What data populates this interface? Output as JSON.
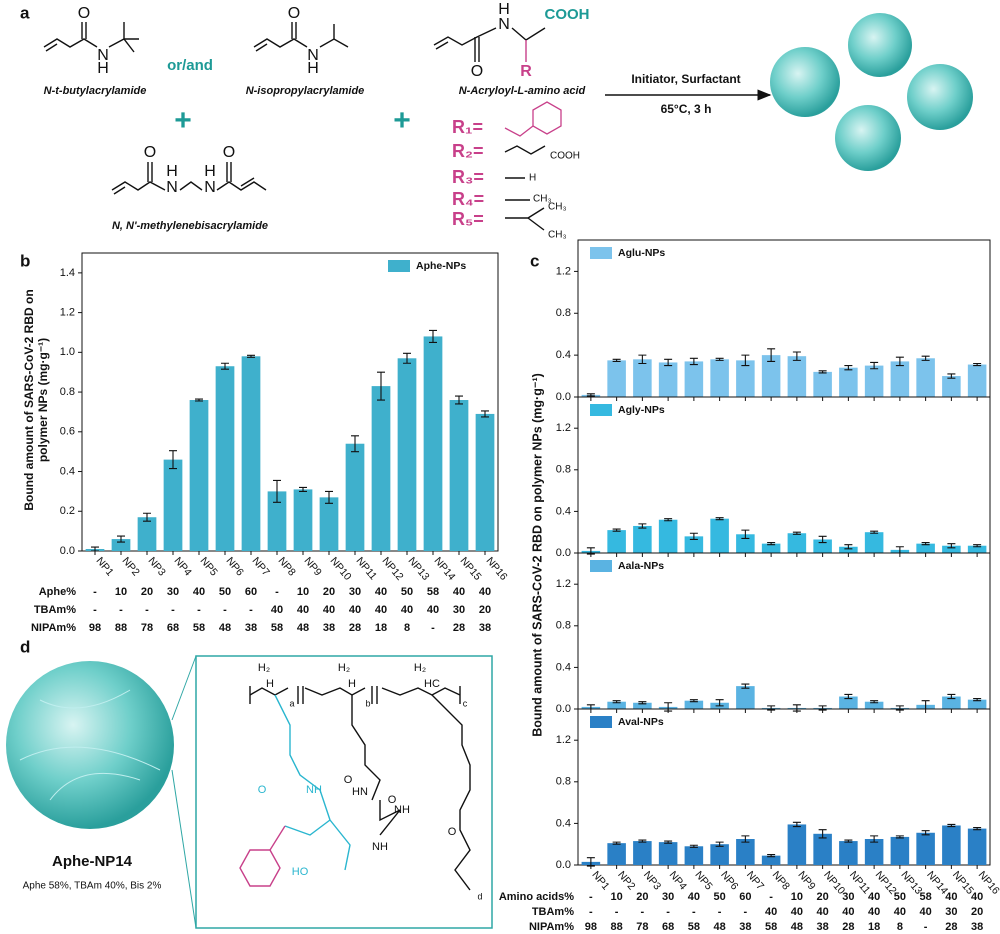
{
  "panel_labels": [
    "a",
    "b",
    "c",
    "d"
  ],
  "scheme": {
    "monomers": [
      {
        "name": "N-t-butylacrylamide",
        "atoms": [
          "O",
          "N",
          "H"
        ]
      },
      {
        "name": "N-isopropylacrylamide",
        "atoms": [
          "O",
          "N",
          "H"
        ]
      },
      {
        "name": "N-Acryloyl-L-amino acid",
        "atoms": [
          "H",
          "N",
          "O",
          "COOH",
          "R"
        ]
      },
      {
        "name": "N, N'-methylenebisacrylamide",
        "atoms": [
          "O",
          "O",
          "H",
          "N",
          "N",
          "H"
        ]
      }
    ],
    "connector": "or/and",
    "plus": [
      "+",
      "+"
    ],
    "conditions": [
      "Initiator, Surfactant",
      "65°C, 3 h"
    ],
    "r_groups": [
      {
        "label": "R₁=",
        "atoms": []
      },
      {
        "label": "R₂=",
        "atoms": [
          "COOH"
        ]
      },
      {
        "label": "R₃=",
        "atoms": [
          "H"
        ]
      },
      {
        "label": "R₄=",
        "atoms": [
          "CH₃"
        ]
      },
      {
        "label": "R₅=",
        "atoms": [
          "CH₃",
          "CH₃"
        ]
      }
    ]
  },
  "panel_c": {
    "ylabel": "Bound amount of SARS-CoV-2 RBD on polymer NPs (mg·g⁻¹)"
  },
  "chart_data": [
    {
      "type": "bar",
      "legend": "top-right",
      "ylabel": [
        "Bound amount of SARS-CoV-2 RBD on",
        "polymer NPs (mg·g⁻¹)"
      ],
      "categories": [
        "NP1",
        "NP2",
        "NP3",
        "NP4",
        "NP5",
        "NP6",
        "NP7",
        "NP8",
        "NP9",
        "NP10",
        "NP11",
        "NP12",
        "NP13",
        "NP14",
        "NP15",
        "NP16"
      ],
      "series": [
        {
          "name": "Aphe-NPs",
          "color": "#3fb0cc",
          "values": [
            0.01,
            0.06,
            0.17,
            0.46,
            0.76,
            0.93,
            0.98,
            0.3,
            0.31,
            0.27,
            0.54,
            0.83,
            0.97,
            1.08,
            0.76,
            0.69
          ],
          "errors": [
            0.01,
            0.015,
            0.02,
            0.045,
            0.005,
            0.015,
            0.005,
            0.055,
            0.01,
            0.03,
            0.04,
            0.07,
            0.025,
            0.03,
            0.02,
            0.015
          ]
        }
      ],
      "ylim": [
        0,
        1.5
      ],
      "yticks": [
        {
          "value": 0,
          "label": "0.0"
        },
        0.2,
        0.4,
        0.6,
        0.8,
        {
          "value": 1,
          "label": "1.0"
        },
        1.2,
        1.4
      ]
    },
    {
      "type": "bar",
      "legend": "top-left",
      "series": [
        {
          "name": "Aglu-NPs",
          "color": "#7cc3ec",
          "values": [
            0.02,
            0.35,
            0.36,
            0.33,
            0.34,
            0.36,
            0.35,
            0.4,
            0.39,
            0.24,
            0.28,
            0.3,
            0.34,
            0.37,
            0.2,
            0.31
          ],
          "errors": [
            0.01,
            0.01,
            0.04,
            0.03,
            0.03,
            0.01,
            0.05,
            0.06,
            0.04,
            0.01,
            0.02,
            0.03,
            0.04,
            0.02,
            0.02,
            0.01
          ]
        }
      ],
      "ylim": [
        0,
        1.5
      ],
      "yticks": [
        {
          "value": 0,
          "label": "0.0"
        },
        0.4,
        0.8,
        1.2
      ]
    },
    {
      "type": "bar",
      "legend": "top-left",
      "series": [
        {
          "name": "Agly-NPs",
          "color": "#35b9e0",
          "values": [
            0.02,
            0.22,
            0.26,
            0.32,
            0.16,
            0.33,
            0.18,
            0.09,
            0.19,
            0.13,
            0.06,
            0.2,
            0.03,
            0.09,
            0.07,
            0.07
          ],
          "errors": [
            0.03,
            0.01,
            0.02,
            0.01,
            0.03,
            0.01,
            0.04,
            0.01,
            0.01,
            0.03,
            0.02,
            0.01,
            0.03,
            0.01,
            0.02,
            0.01
          ]
        }
      ],
      "ylim": [
        0,
        1.5
      ],
      "yticks": [
        {
          "value": 0,
          "label": "0.0"
        },
        0.4,
        0.8,
        1.2
      ]
    },
    {
      "type": "bar",
      "legend": "top-left",
      "series": [
        {
          "name": "Aala-NPs",
          "color": "#5ab3e2",
          "values": [
            0.02,
            0.07,
            0.06,
            0.02,
            0.08,
            0.06,
            0.22,
            0.01,
            0.01,
            0.01,
            0.12,
            0.07,
            0.01,
            0.04,
            0.12,
            0.09
          ],
          "errors": [
            0.02,
            0.01,
            0.01,
            0.04,
            0.01,
            0.03,
            0.02,
            0.02,
            0.03,
            0.02,
            0.02,
            0.01,
            0.02,
            0.04,
            0.02,
            0.01
          ]
        }
      ],
      "ylim": [
        0,
        1.5
      ],
      "yticks": [
        {
          "value": 0,
          "label": "0.0"
        },
        0.4,
        0.8,
        1.2
      ]
    },
    {
      "type": "bar",
      "legend": "top-left",
      "categories": [
        "NP1",
        "NP2",
        "NP3",
        "NP4",
        "NP5",
        "NP6",
        "NP7",
        "NP8",
        "NP9",
        "NP10",
        "NP11",
        "NP12",
        "NP13",
        "NP14",
        "NP15",
        "NP16"
      ],
      "series": [
        {
          "name": "Aval-NPs",
          "color": "#2a80c6",
          "values": [
            0.03,
            0.21,
            0.23,
            0.22,
            0.18,
            0.2,
            0.25,
            0.09,
            0.39,
            0.3,
            0.23,
            0.25,
            0.27,
            0.31,
            0.38,
            0.35
          ],
          "errors": [
            0.04,
            0.01,
            0.01,
            0.01,
            0.01,
            0.02,
            0.03,
            0.01,
            0.02,
            0.04,
            0.01,
            0.03,
            0.01,
            0.02,
            0.01,
            0.01
          ]
        }
      ],
      "ylim": [
        0,
        1.5
      ],
      "yticks": [
        {
          "value": 0,
          "label": "0.0"
        },
        0.4,
        0.8,
        1.2
      ]
    }
  ],
  "table_b": {
    "rows": [
      {
        "label": "Aphe%",
        "cells": [
          "-",
          "10",
          "20",
          "30",
          "40",
          "50",
          "60",
          "-",
          "10",
          "20",
          "30",
          "40",
          "50",
          "58",
          "40",
          "40"
        ]
      },
      {
        "label": "TBAm%",
        "cells": [
          "-",
          "-",
          "-",
          "-",
          "-",
          "-",
          "-",
          "40",
          "40",
          "40",
          "40",
          "40",
          "40",
          "40",
          "30",
          "20"
        ]
      },
      {
        "label": "NIPAm%",
        "cells": [
          "98",
          "88",
          "78",
          "68",
          "58",
          "48",
          "38",
          "58",
          "48",
          "38",
          "28",
          "18",
          "8",
          "-",
          "28",
          "38"
        ]
      }
    ]
  },
  "table_c": {
    "rows": [
      {
        "label": "Amino acids%",
        "cells": [
          "-",
          "10",
          "20",
          "30",
          "40",
          "50",
          "60",
          "-",
          "10",
          "20",
          "30",
          "40",
          "50",
          "58",
          "40",
          "40"
        ]
      },
      {
        "label": "TBAm%",
        "cells": [
          "-",
          "-",
          "-",
          "-",
          "-",
          "-",
          "-",
          "40",
          "40",
          "40",
          "40",
          "40",
          "40",
          "40",
          "30",
          "20"
        ]
      },
      {
        "label": "NIPAm%",
        "cells": [
          "98",
          "88",
          "78",
          "68",
          "58",
          "48",
          "38",
          "58",
          "48",
          "38",
          "28",
          "18",
          "8",
          "-",
          "28",
          "38"
        ]
      }
    ]
  },
  "particle": {
    "name": "Aphe-NP14",
    "composition": "Aphe 58%, TBAm 40%, Bis 2%",
    "labels": [
      "H₂",
      "H",
      "a",
      "H₂",
      "H",
      "b",
      "H₂",
      "HC",
      "c",
      "O",
      "NH",
      "O",
      "HN",
      "O",
      "NH",
      "NH",
      "O",
      "HO",
      "d"
    ]
  }
}
